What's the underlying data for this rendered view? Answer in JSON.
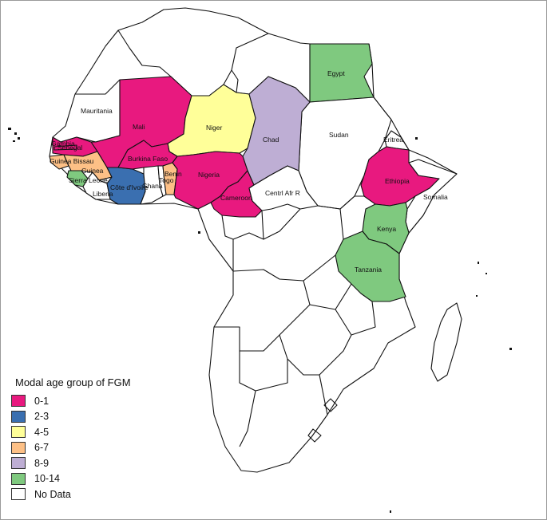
{
  "colors": {
    "c01": "#e8197f",
    "c23": "#3a6fb0",
    "c45": "#ffff99",
    "c67": "#fdc086",
    "c89": "#beaed4",
    "c1014": "#7fc97f",
    "none": "#ffffff"
  },
  "legend": {
    "title": "Modal age group of FGM",
    "items": [
      {
        "label": "0-1",
        "color": "#e8197f"
      },
      {
        "label": "2-3",
        "color": "#3a6fb0"
      },
      {
        "label": "4-5",
        "color": "#ffff99"
      },
      {
        "label": "6-7",
        "color": "#fdc086"
      },
      {
        "label": "8-9",
        "color": "#beaed4"
      },
      {
        "label": "10-14",
        "color": "#7fc97f"
      },
      {
        "label": "No Data",
        "color": "#ffffff"
      }
    ]
  },
  "countries": {
    "egypt": {
      "name": "Egypt",
      "group": "10-14"
    },
    "mauritania": {
      "name": "Mauritania",
      "group": "No Data"
    },
    "mali": {
      "name": "Mali",
      "group": "0-1"
    },
    "niger": {
      "name": "Niger",
      "group": "4-5"
    },
    "chad": {
      "name": "Chad",
      "group": "8-9"
    },
    "sudan": {
      "name": "Sudan",
      "group": "No Data"
    },
    "eritrea": {
      "name": "Eritrea",
      "group": "No Data"
    },
    "ethiopia": {
      "name": "Ethiopia",
      "group": "0-1"
    },
    "somalia": {
      "name": "Somalia",
      "group": "No Data"
    },
    "senegal": {
      "name": "Senegal",
      "group": "0-1"
    },
    "gambia": {
      "name": "Gambia",
      "group": "0-1"
    },
    "guinea_bissau": {
      "name": "Guinea Bissau",
      "group": "6-7"
    },
    "guinea": {
      "name": "Guinea",
      "group": "6-7"
    },
    "sierra_leone": {
      "name": "Sierra Leone",
      "group": "10-14"
    },
    "liberia": {
      "name": "Liberia",
      "group": "No Data"
    },
    "cote_divoire": {
      "name": "Côte d'Ivoire",
      "group": "2-3"
    },
    "burkina_faso": {
      "name": "Burkina Faso",
      "group": "0-1"
    },
    "ghana": {
      "name": "Ghana",
      "group": "No Data"
    },
    "togo": {
      "name": "Togo",
      "group": "No Data"
    },
    "benin": {
      "name": "Benin",
      "group": "6-7"
    },
    "nigeria": {
      "name": "Nigeria",
      "group": "0-1"
    },
    "cameroon": {
      "name": "Cameroon",
      "group": "0-1"
    },
    "car": {
      "name": "Centrl Afr R",
      "group": "No Data"
    },
    "kenya": {
      "name": "Kenya",
      "group": "10-14"
    },
    "tanzania": {
      "name": "Tanzania",
      "group": "10-14"
    }
  }
}
